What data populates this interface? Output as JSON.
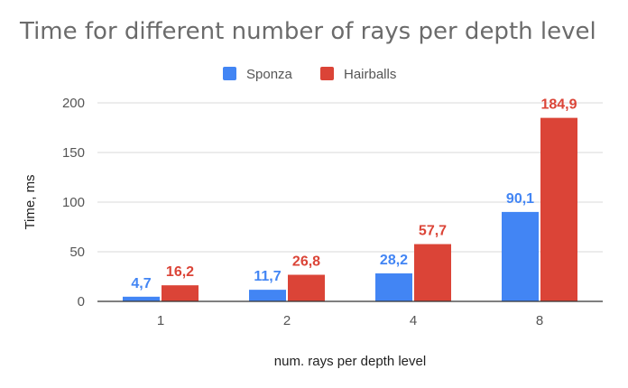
{
  "chart_data": {
    "type": "bar",
    "title": "Time for different number of rays per depth level",
    "xlabel": "num. rays per depth level",
    "ylabel": "Time, ms",
    "categories": [
      "1",
      "2",
      "4",
      "8"
    ],
    "series": [
      {
        "name": "Sponza",
        "values": [
          4.7,
          11.7,
          28.2,
          90.1
        ],
        "labels": [
          "4,7",
          "11,7",
          "28,2",
          "90,1"
        ],
        "color": "#4285f4"
      },
      {
        "name": "Hairballs",
        "values": [
          16.2,
          26.8,
          57.7,
          184.9
        ],
        "labels": [
          "16,2",
          "26,8",
          "57,7",
          "184,9"
        ],
        "color": "#db4437"
      }
    ],
    "ylim": [
      0,
      200
    ],
    "yticks": [
      0,
      50,
      100,
      150,
      200
    ],
    "grid": true,
    "legend_position": "top"
  }
}
